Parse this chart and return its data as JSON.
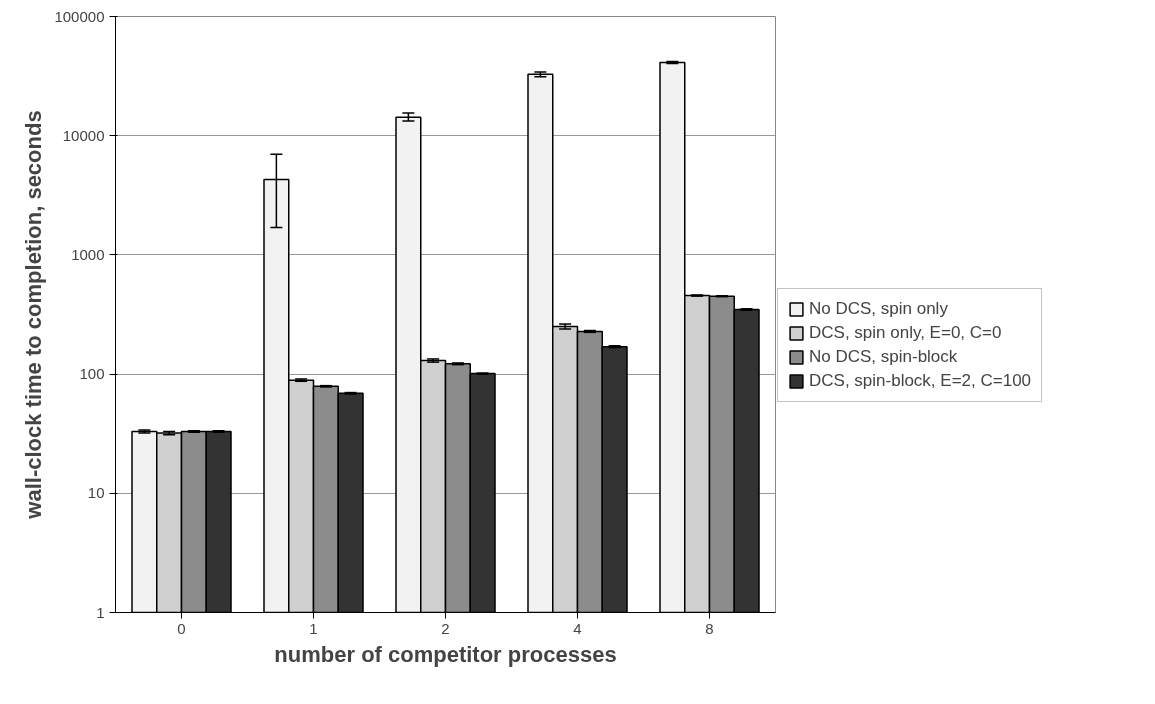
{
  "chart_data": {
    "type": "bar",
    "xlabel": "number of competitor processes",
    "ylabel": "wall-clock time to completion, seconds",
    "categories": [
      "0",
      "1",
      "2",
      "4",
      "8"
    ],
    "series": [
      {
        "name": "No DCS, spin only",
        "color": "#f2f2f2",
        "values": [
          33,
          4300,
          14300,
          32700,
          41200
        ],
        "errors": [
          1,
          [
            1700,
            7000
          ],
          [
            13300,
            15500
          ],
          1500,
          800
        ]
      },
      {
        "name": "DCS, spin only, E=0, C=0",
        "color": "#d0d0d0",
        "values": [
          32,
          89,
          130,
          251,
          456
        ],
        "errors": [
          1,
          2,
          4,
          12,
          5
        ]
      },
      {
        "name": "No DCS, spin-block",
        "color": "#8c8c8c",
        "values": [
          33,
          79,
          122,
          228,
          450
        ],
        "errors": [
          0.5,
          1,
          2,
          4,
          4
        ]
      },
      {
        "name": "DCS, spin-block, E=2, C=100",
        "color": "#333333",
        "values": [
          33,
          69,
          101,
          170,
          348
        ],
        "errors": [
          0.5,
          1,
          1,
          3,
          5
        ]
      }
    ],
    "log": true,
    "ylim": [
      1,
      100000
    ],
    "yticks": [
      1,
      10,
      100,
      1000,
      10000,
      100000
    ],
    "grid": "y",
    "legend": "right"
  }
}
